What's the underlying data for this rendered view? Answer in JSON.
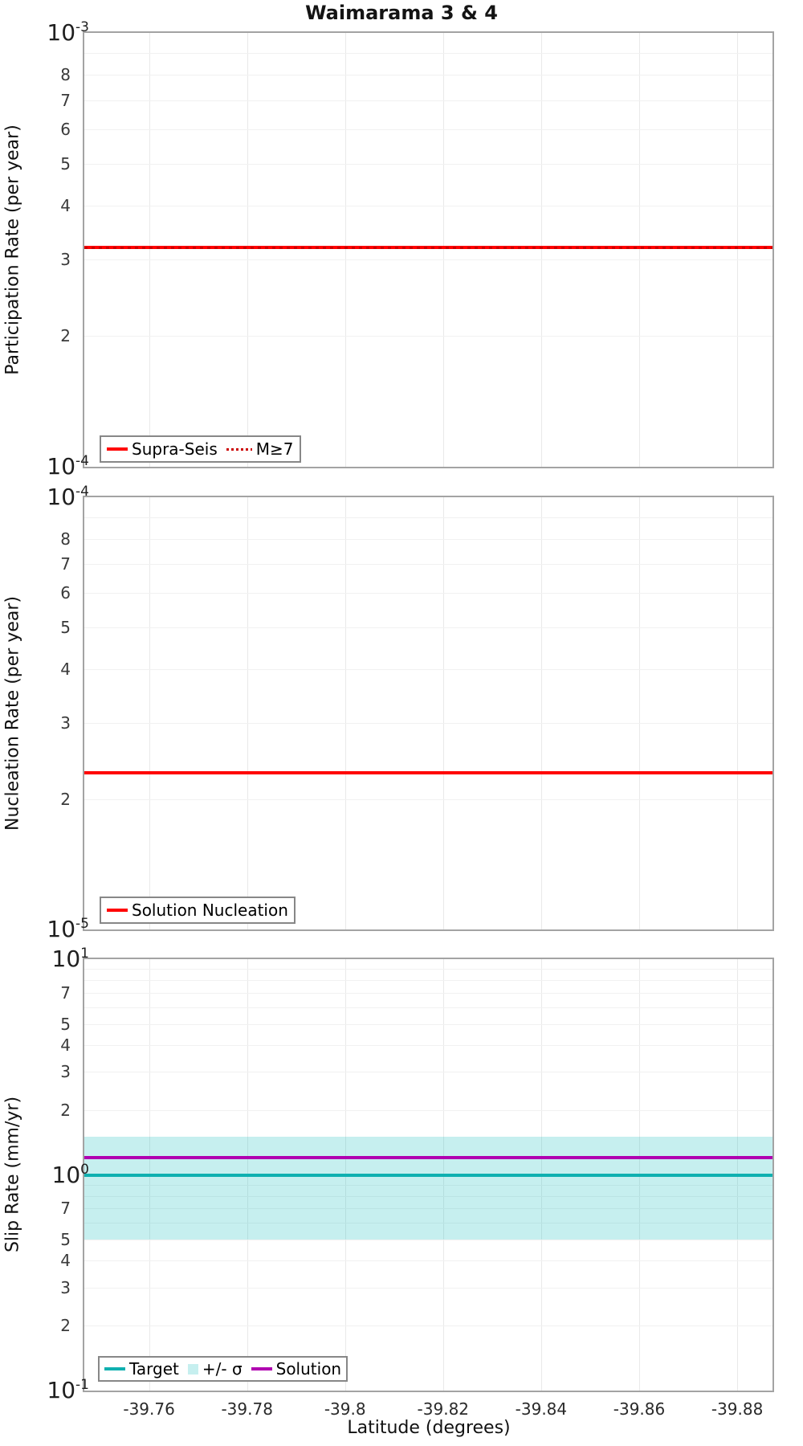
{
  "title": "Waimarama 3 & 4",
  "x_axis": {
    "label": "Latitude (degrees)",
    "reversed": true,
    "left_value": -39.7468,
    "right_value": -39.8872,
    "ticks": [
      {
        "label": "-39.76",
        "value": -39.76
      },
      {
        "label": "-39.78",
        "value": -39.78
      },
      {
        "label": "-39.8",
        "value": -39.8
      },
      {
        "label": "-39.82",
        "value": -39.82
      },
      {
        "label": "-39.84",
        "value": -39.84
      },
      {
        "label": "-39.86",
        "value": -39.86
      },
      {
        "label": "-39.88",
        "value": -39.88
      }
    ]
  },
  "chart_data": [
    {
      "type": "line",
      "name": "participation-rate",
      "ylabel": "Participation Rate (per year)",
      "yscale": "log",
      "ylim": [
        0.0001,
        0.001
      ],
      "grid": true,
      "legend_position": "lower-left",
      "decade_labels": [
        {
          "base": "10",
          "exp": "-3",
          "value": 0.001
        },
        {
          "base": "10",
          "exp": "-4",
          "value": 0.0001
        }
      ],
      "minor_tick_labels": [
        {
          "text": "8",
          "value": 0.0008
        },
        {
          "text": "7",
          "value": 0.0007
        },
        {
          "text": "6",
          "value": 0.0006
        },
        {
          "text": "5",
          "value": 0.0005
        },
        {
          "text": "4",
          "value": 0.0004
        },
        {
          "text": "3",
          "value": 0.0003
        },
        {
          "text": "2",
          "value": 0.0002
        }
      ],
      "series": [
        {
          "name": "Supra-Seis",
          "style": "solid",
          "color": "#ff0000",
          "width": 4,
          "value": 0.00032
        },
        {
          "name": "M≥7",
          "style": "dotted",
          "color": "#cc0000",
          "width": 3,
          "value": 0.00032
        }
      ]
    },
    {
      "type": "line",
      "name": "nucleation-rate",
      "ylabel": "Nucleation Rate (per year)",
      "yscale": "log",
      "ylim": [
        1e-05,
        0.0001
      ],
      "grid": true,
      "legend_position": "lower-left",
      "decade_labels": [
        {
          "base": "10",
          "exp": "-4",
          "value": 0.0001
        },
        {
          "base": "10",
          "exp": "-5",
          "value": 1e-05
        }
      ],
      "minor_tick_labels": [
        {
          "text": "8",
          "value": 8e-05
        },
        {
          "text": "7",
          "value": 7e-05
        },
        {
          "text": "6",
          "value": 6e-05
        },
        {
          "text": "5",
          "value": 5e-05
        },
        {
          "text": "4",
          "value": 4e-05
        },
        {
          "text": "3",
          "value": 3e-05
        },
        {
          "text": "2",
          "value": 2e-05
        }
      ],
      "series": [
        {
          "name": "Solution Nucleation",
          "style": "solid",
          "color": "#ff0000",
          "width": 4,
          "value": 2.3e-05
        }
      ]
    },
    {
      "type": "line",
      "name": "slip-rate",
      "ylabel": "Slip Rate (mm/yr)",
      "yscale": "log",
      "ylim": [
        0.1,
        10
      ],
      "grid": true,
      "legend_position": "lower-left",
      "decade_labels": [
        {
          "base": "10",
          "exp": "1",
          "value": 10
        },
        {
          "base": "10",
          "exp": "0",
          "value": 1
        },
        {
          "base": "10",
          "exp": "-1",
          "value": 0.1
        }
      ],
      "minor_tick_labels": [
        {
          "text": "7",
          "value": 7
        },
        {
          "text": "5",
          "value": 5
        },
        {
          "text": "4",
          "value": 4
        },
        {
          "text": "3",
          "value": 3
        },
        {
          "text": "2",
          "value": 2
        },
        {
          "text": "7",
          "value": 0.7
        },
        {
          "text": "5",
          "value": 0.5
        },
        {
          "text": "4",
          "value": 0.4
        },
        {
          "text": "3",
          "value": 0.3
        },
        {
          "text": "2",
          "value": 0.2
        }
      ],
      "band": {
        "name": "+/- σ",
        "low": 0.5,
        "high": 1.5,
        "color": "rgba(34,193,193,0.26)"
      },
      "series": [
        {
          "name": "Target",
          "style": "solid",
          "color": "#0fb0b0",
          "width": 4,
          "value": 1.0
        },
        {
          "name": "Solution",
          "style": "solid",
          "color": "#b000b0",
          "width": 4,
          "value": 1.2
        }
      ]
    }
  ],
  "colors": {
    "grid_minor": "#f1f1f1",
    "grid_major": "#e6e6e6",
    "grid_vertical": "#e9e9e9",
    "panel_border": "#a3a3a3",
    "legend_border": "#878787"
  }
}
